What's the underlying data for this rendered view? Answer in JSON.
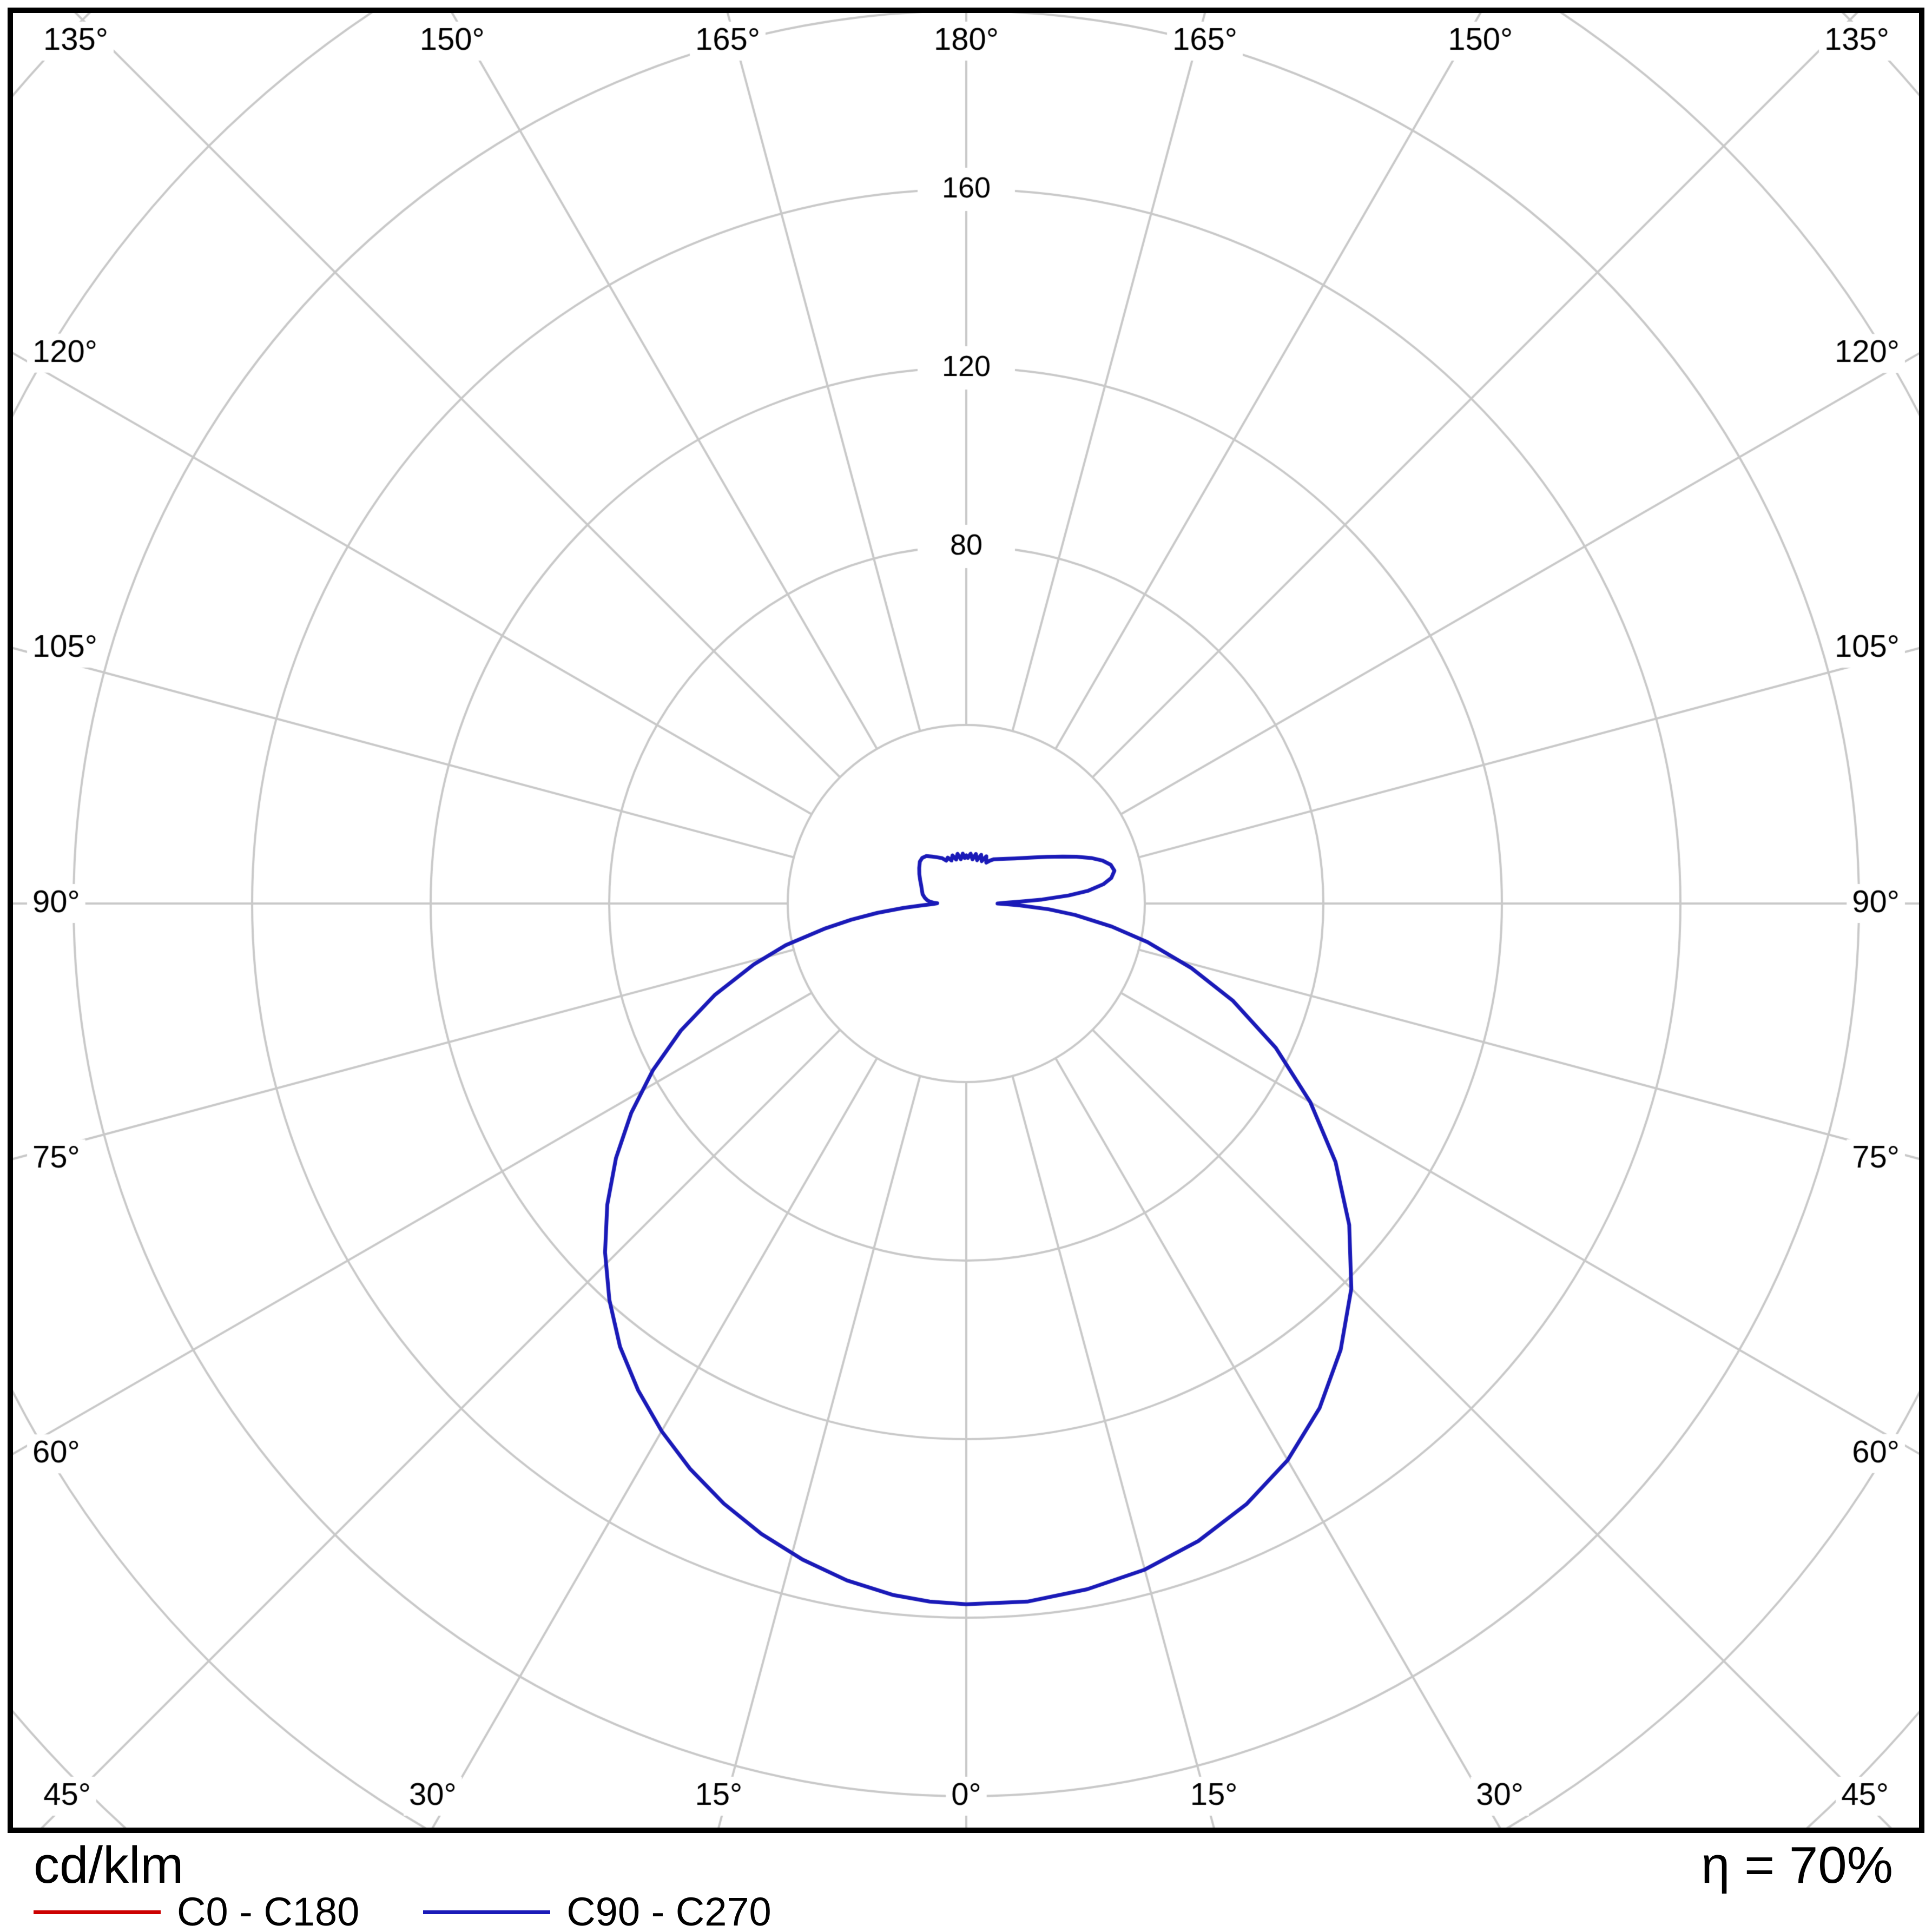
{
  "chart_data": {
    "type": "polar-photometric",
    "unit_label": "cd/klm",
    "efficiency_label": "η = 70%",
    "grid_color": "#c9c9c9",
    "grid_rings": [
      40,
      80,
      120,
      160,
      200,
      240,
      280
    ],
    "grid_inner_ring": 40,
    "radial_tick_labels": [
      "80",
      "120",
      "160"
    ],
    "angle_step_deg": 15,
    "angle_labels": [
      "0°",
      "15°",
      "30°",
      "45°",
      "60°",
      "75°",
      "90°",
      "105°",
      "120°",
      "135°",
      "150°",
      "165°",
      "180°"
    ],
    "legend_position": "bottom-left",
    "series": [
      {
        "name": "C0 - C180",
        "color": "#cc0000",
        "points": []
      },
      {
        "name": "C90 - C270",
        "color": "#1a1ab8",
        "points": [
          [
            0,
            157
          ],
          [
            5,
            157
          ],
          [
            10,
            156
          ],
          [
            15,
            154.5
          ],
          [
            20,
            152
          ],
          [
            25,
            148.5
          ],
          [
            30,
            144
          ],
          [
            35,
            138
          ],
          [
            40,
            130.5
          ],
          [
            45,
            122
          ],
          [
            50,
            112
          ],
          [
            55,
            101
          ],
          [
            60,
            89
          ],
          [
            65,
            76.5
          ],
          [
            70,
            63.5
          ],
          [
            74,
            52.5
          ],
          [
            78,
            41.5
          ],
          [
            81,
            33
          ],
          [
            84,
            24.5
          ],
          [
            86,
            18.5
          ],
          [
            88,
            12
          ],
          [
            89,
            9
          ],
          [
            90,
            7
          ],
          [
            91,
            8.5
          ],
          [
            92,
            12
          ],
          [
            93,
            17
          ],
          [
            94.5,
            23
          ],
          [
            96,
            27.5
          ],
          [
            98,
            31
          ],
          [
            100,
            33
          ],
          [
            102.5,
            34
          ],
          [
            105,
            33.5
          ],
          [
            107.5,
            32
          ],
          [
            110,
            29.8
          ],
          [
            113,
            26.8
          ],
          [
            116,
            24
          ],
          [
            120,
            20.9
          ],
          [
            124,
            18.5
          ],
          [
            128,
            16.6
          ],
          [
            133,
            14.8
          ],
          [
            138,
            13.5
          ],
          [
            143,
            12.5
          ],
          [
            148,
            11.7
          ],
          [
            151,
            11
          ],
          [
            154,
            10.2
          ],
          [
            157,
            11.5
          ],
          [
            160,
            10.1
          ],
          [
            163,
            11.4
          ],
          [
            166,
            10
          ],
          [
            169,
            11.3
          ],
          [
            172,
            10
          ],
          [
            175,
            11.2
          ],
          [
            178,
            10.2
          ],
          [
            180,
            10.8
          ],
          [
            182,
            10.2
          ],
          [
            184,
            11.2
          ],
          [
            187,
            10
          ],
          [
            190,
            11.3
          ],
          [
            193,
            10.1
          ],
          [
            196,
            11.2
          ],
          [
            199,
            10.2
          ],
          [
            202,
            11.1
          ],
          [
            205,
            10.6
          ],
          [
            208,
            11.5
          ],
          [
            212,
            12.2
          ],
          [
            216,
            13
          ],
          [
            220,
            13.9
          ],
          [
            224,
            14.2
          ],
          [
            228,
            14
          ],
          [
            233,
            13.2
          ],
          [
            238,
            12.4
          ],
          [
            243,
            11.6
          ],
          [
            248,
            10.9
          ],
          [
            253,
            10.4
          ],
          [
            258,
            10
          ],
          [
            262,
            9.4
          ],
          [
            265,
            8.8
          ],
          [
            267,
            8.2
          ],
          [
            268.5,
            7.4
          ],
          [
            269.5,
            6.5
          ],
          [
            271,
            7.5
          ],
          [
            272.5,
            10
          ],
          [
            274,
            14
          ],
          [
            276,
            20
          ],
          [
            278,
            26
          ],
          [
            280,
            32
          ],
          [
            283,
            41.5
          ],
          [
            286,
            49.5
          ],
          [
            290,
            60
          ],
          [
            294,
            70
          ],
          [
            298,
            79.5
          ],
          [
            302,
            88.5
          ],
          [
            306,
            97
          ],
          [
            310,
            105
          ],
          [
            314,
            112.5
          ],
          [
            318,
            119.5
          ],
          [
            322,
            126
          ],
          [
            326,
            131.5
          ],
          [
            330,
            136.5
          ],
          [
            334,
            141
          ],
          [
            338,
            145
          ],
          [
            342,
            148.5
          ],
          [
            346,
            151.5
          ],
          [
            350,
            154
          ],
          [
            354,
            155.8
          ],
          [
            357,
            156.6
          ],
          [
            360,
            157
          ]
        ]
      }
    ]
  }
}
